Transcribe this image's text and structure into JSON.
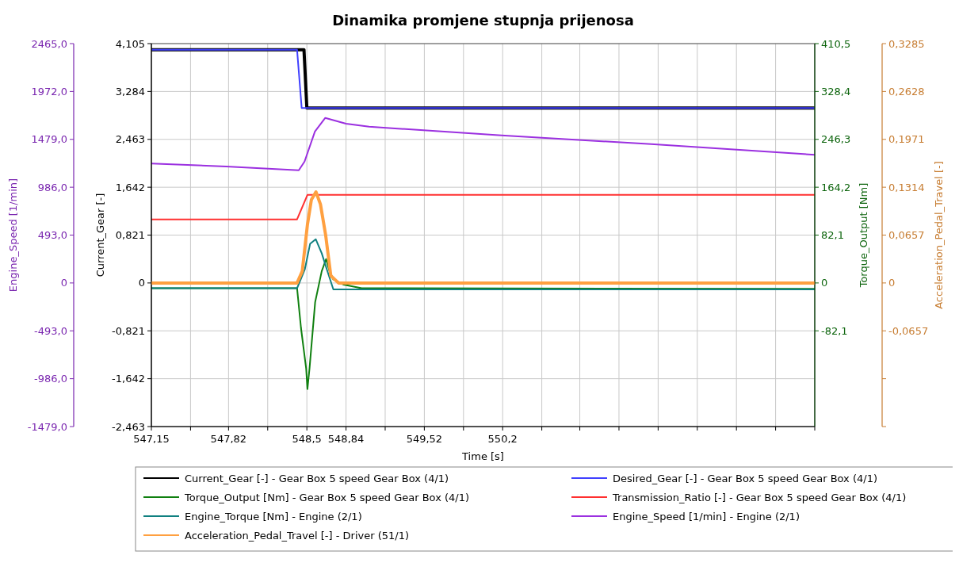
{
  "chart_data": [
    {
      "type": "line",
      "title": "Dinamika promjene stupnja prijenosa",
      "xlabel": "Time [s]",
      "ylabel": "Current_Gear [-]",
      "y2label": "Engine_Speed [1/min]",
      "y3label": "Torque_Output [Nm]",
      "xlim": [
        547.15,
        552.91
      ],
      "xticks": [
        {
          "value": 547.15,
          "label": "547,15"
        },
        {
          "value": 547.49,
          "label": null
        },
        {
          "value": 547.82,
          "label": "547,82"
        },
        {
          "value": 548.16,
          "label": null
        },
        {
          "value": 548.5,
          "label": "548,5"
        },
        {
          "value": 548.84,
          "label": "548,84"
        },
        {
          "value": 549.18,
          "label": null
        },
        {
          "value": 549.52,
          "label": "549,52"
        },
        {
          "value": 549.86,
          "label": null
        },
        {
          "value": 550.2,
          "label": "550,2"
        },
        {
          "value": 550.54,
          "label": null
        },
        {
          "value": 550.87,
          "label": null
        },
        {
          "value": 551.21,
          "label": null
        },
        {
          "value": 551.55,
          "label": null
        },
        {
          "value": 551.89,
          "label": null
        },
        {
          "value": 552.23,
          "label": null
        },
        {
          "value": 552.57,
          "label": null
        },
        {
          "value": 552.91,
          "label": null
        }
      ],
      "ylim": [
        -2.463,
        4.105
      ],
      "yticks": [
        {
          "value": -2.463,
          "label": "-2,463"
        },
        {
          "value": -1.642,
          "label": "-1,642"
        },
        {
          "value": -0.821,
          "label": "-0,821"
        },
        0,
        {
          "value": 0.821,
          "label": "0,821"
        },
        {
          "value": 1.642,
          "label": "1,642"
        },
        {
          "value": 2.463,
          "label": "2,463"
        },
        {
          "value": 3.284,
          "label": "3,284"
        },
        {
          "value": 4.105,
          "label": "4,105"
        }
      ],
      "y2lim": [
        -1479,
        2465
      ],
      "y2ticks": [
        {
          "value": -1479,
          "label": "-1479,0"
        },
        {
          "value": -986,
          "label": "-986,0"
        },
        {
          "value": -493,
          "label": "-493,0"
        },
        0,
        {
          "value": 493,
          "label": "493,0"
        },
        {
          "value": 986,
          "label": "986,0"
        },
        {
          "value": 1479,
          "label": "1479,0"
        },
        {
          "value": 1972,
          "label": "1972,0"
        },
        {
          "value": 2465,
          "label": "2465,0"
        }
      ],
      "y3lim": [
        -246.3,
        410.5
      ],
      "y3ticks": [
        {
          "value": -82.1,
          "label": "-82,1"
        },
        0,
        {
          "value": 82.1,
          "label": "82,1"
        },
        {
          "value": 164.2,
          "label": "164,2"
        },
        {
          "value": 246.3,
          "label": "246,3"
        },
        {
          "value": 328.4,
          "label": "328,4"
        },
        {
          "value": 410.5,
          "label": "410,5"
        }
      ],
      "grid": true,
      "legend": "bottom",
      "series": [
        {
          "name": "Current_Gear [-] - Gear Box 5 speed Gear Box (4/1)",
          "color": "#000000",
          "x": [
            547.15,
            548.475,
            548.5,
            552.91
          ],
          "values": [
            4,
            4,
            3,
            3
          ]
        },
        {
          "name": "Desired_Gear [-] - Gear Box 5 speed Gear Box (4/1)",
          "color": "#4040ff",
          "x": [
            547.15,
            548.415,
            548.455,
            552.91
          ],
          "values": [
            4,
            4,
            3,
            3
          ]
        },
        {
          "name": "Torque_Output [Nm] - Gear Box 5 speed Gear Box (4/1)",
          "color": "#108010",
          "axis": "y3",
          "x": [
            547.15,
            548.415,
            548.449,
            548.494,
            548.505,
            548.523,
            548.572,
            548.629,
            548.667,
            548.697,
            548.73,
            548.82,
            548.976,
            552.91
          ],
          "values": [
            -9,
            -9,
            -77,
            -147,
            -182,
            -147,
            -33,
            20,
            41,
            20,
            6,
            -3,
            -9,
            -10
          ]
        },
        {
          "name": "Transmission_Ratio [-] - Gear Box 5 speed Gear Box (4/1)",
          "color": "#ff3030",
          "x": [
            547.15,
            548.415,
            548.505,
            552.91
          ],
          "values": [
            1.09,
            1.09,
            1.51,
            1.51
          ]
        },
        {
          "name": "Engine_Torque [Nm] - Engine (2/1)",
          "color": "#108080",
          "axis": "y3",
          "x": [
            547.15,
            548.415,
            548.482,
            548.528,
            548.577,
            548.629,
            548.674,
            548.73,
            552.91
          ],
          "values": [
            -9,
            -9,
            23,
            67,
            75,
            51,
            23,
            -11,
            -11
          ]
        },
        {
          "name": "Engine_Speed [1/min] - Engine (2/1)",
          "color": "#9b30e0",
          "axis": "y2",
          "x": [
            547.15,
            547.8,
            548.43,
            548.48,
            548.57,
            548.66,
            548.84,
            549.04,
            549.29,
            550.19,
            551.49,
            552.91
          ],
          "values": [
            1230,
            1200,
            1160,
            1250,
            1560,
            1700,
            1640,
            1610,
            1590,
            1520,
            1430,
            1320
          ]
        }
      ]
    },
    {
      "type": "line",
      "ylabel": "Acceleration_Pedal_Travel [-]",
      "xlim": [
        547.15,
        552.91
      ],
      "tick_labels": "y",
      "legend": "bottom",
      "ylim": [
        -0.1971,
        0.3285
      ],
      "yticks": [
        {
          "value": -0.1971,
          "label": null
        },
        {
          "value": -0.1314,
          "label": null
        },
        {
          "value": -0.0657,
          "label": "-0,0657"
        },
        0,
        {
          "value": 0.0657,
          "label": "0,0657"
        },
        {
          "value": 0.1314,
          "label": "0,1314"
        },
        {
          "value": 0.1971,
          "label": "0,1971"
        },
        {
          "value": 0.2628,
          "label": "0,2628"
        },
        {
          "value": 0.3285,
          "label": "0,3285"
        }
      ],
      "series": [
        {
          "name": "Acceleration_Pedal_Travel [-] - Driver (51/1)",
          "color": "#ffa040",
          "x": [
            547.15,
            548.415,
            548.46,
            548.505,
            548.539,
            548.579,
            548.618,
            548.663,
            548.708,
            548.775,
            552.91
          ],
          "values": [
            0,
            0,
            0.016,
            0.08,
            0.114,
            0.125,
            0.108,
            0.066,
            0.01,
            0,
            0
          ]
        }
      ]
    }
  ]
}
